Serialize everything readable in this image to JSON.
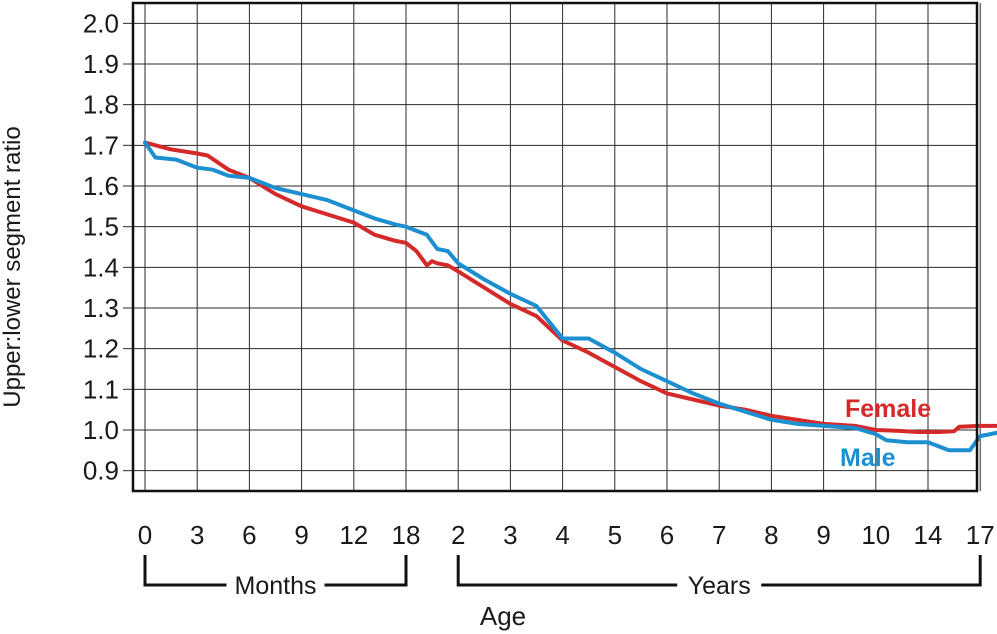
{
  "chart_data": {
    "type": "line",
    "ylabel": "Upper:lower segment ratio",
    "xlabel": "Age",
    "ylim": [
      0.85,
      2.05
    ],
    "yticks": [
      "2.0",
      "1.9",
      "1.8",
      "1.7",
      "1.6",
      "1.5",
      "1.4",
      "1.3",
      "1.2",
      "1.1",
      "1.0",
      "0.9"
    ],
    "x_tick_labels": [
      "0",
      "3",
      "6",
      "9",
      "12",
      "18",
      "2",
      "3",
      "4",
      "5",
      "6",
      "7",
      "8",
      "9",
      "10",
      "14",
      "17"
    ],
    "groups": [
      {
        "label": "Months",
        "from": 0,
        "to": 5
      },
      {
        "label": "Years",
        "from": 6,
        "to": 16
      }
    ],
    "grid": true,
    "series": [
      {
        "name": "Female",
        "color": "#d42a2a",
        "x": [
          0,
          0.5,
          1.0,
          1.2,
          1.6,
          2.0,
          2.5,
          3.0,
          3.5,
          4.0,
          4.4,
          4.8,
          5.0,
          5.2,
          5.4,
          5.5,
          5.6,
          5.8,
          6.0,
          6.5,
          7.0,
          7.5,
          8.0,
          8.5,
          9.0,
          9.5,
          10.0,
          10.5,
          11.0,
          11.5,
          12.0,
          12.5,
          13.0,
          13.6,
          14.0,
          14.4,
          14.8,
          15.2,
          15.5,
          15.6,
          16.0,
          16.3
        ],
        "y": [
          1.707,
          1.69,
          1.68,
          1.675,
          1.64,
          1.62,
          1.58,
          1.55,
          1.53,
          1.51,
          1.48,
          1.465,
          1.46,
          1.44,
          1.405,
          1.415,
          1.41,
          1.405,
          1.39,
          1.35,
          1.31,
          1.28,
          1.22,
          1.19,
          1.155,
          1.12,
          1.09,
          1.075,
          1.06,
          1.05,
          1.035,
          1.025,
          1.015,
          1.01,
          1.0,
          0.998,
          0.995,
          0.995,
          0.997,
          1.008,
          1.01,
          1.01
        ]
      },
      {
        "name": "Male",
        "color": "#1c8fd0",
        "x": [
          0,
          0.2,
          0.6,
          1.0,
          1.3,
          1.6,
          2.0,
          2.5,
          3.0,
          3.5,
          4.0,
          4.4,
          4.8,
          5.0,
          5.2,
          5.4,
          5.6,
          5.8,
          6.0,
          6.5,
          7.0,
          7.5,
          8.0,
          8.5,
          9.0,
          9.5,
          10.0,
          10.5,
          11.0,
          11.5,
          12.0,
          12.5,
          13.0,
          13.6,
          14.0,
          14.2,
          14.6,
          15.0,
          15.4,
          15.8,
          16.0,
          16.4
        ],
        "y": [
          1.707,
          1.67,
          1.665,
          1.645,
          1.64,
          1.625,
          1.62,
          1.595,
          1.58,
          1.565,
          1.54,
          1.52,
          1.505,
          1.5,
          1.49,
          1.48,
          1.445,
          1.44,
          1.41,
          1.37,
          1.335,
          1.305,
          1.225,
          1.225,
          1.19,
          1.15,
          1.12,
          1.09,
          1.065,
          1.045,
          1.025,
          1.015,
          1.01,
          1.005,
          0.99,
          0.975,
          0.97,
          0.97,
          0.95,
          0.95,
          0.985,
          0.995
        ]
      }
    ]
  }
}
